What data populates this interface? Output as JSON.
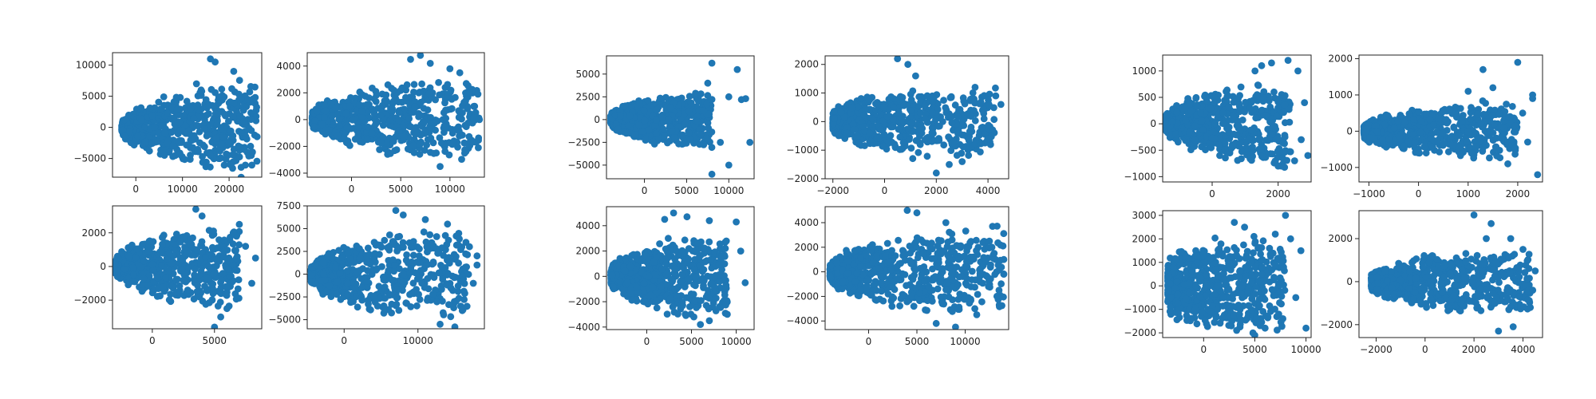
{
  "figure": {
    "marker_color": "#1f77b4"
  },
  "chart_data": [
    {
      "type": "scatter",
      "group": 1,
      "row": 0,
      "col": 0,
      "xlim": [
        -5000,
        27000
      ],
      "ylim": [
        -8000,
        12000
      ],
      "xticks": [
        0,
        10000,
        20000
      ],
      "yticks": [
        -5000,
        0,
        5000,
        10000
      ],
      "cloud": {
        "x_start": -3000,
        "x_core": 10000,
        "x_end": 26000,
        "y_left": 600,
        "y_core": 6000,
        "y_end": 9000
      },
      "outliers": [
        [
          14000,
          6000
        ],
        [
          16000,
          11000
        ],
        [
          17000,
          10500
        ],
        [
          21000,
          9000
        ],
        [
          24000,
          4500
        ],
        [
          19000,
          0
        ],
        [
          20000,
          -2500
        ],
        [
          22000,
          -3000
        ],
        [
          26000,
          -1500
        ],
        [
          18000,
          -5000
        ],
        [
          25000,
          -4000
        ],
        [
          13000,
          7000
        ]
      ]
    },
    {
      "type": "scatter",
      "group": 1,
      "row": 0,
      "col": 1,
      "xlim": [
        -4500,
        13500
      ],
      "ylim": [
        -4300,
        5000
      ],
      "xticks": [
        0,
        5000,
        10000
      ],
      "yticks": [
        -4000,
        -2000,
        0,
        2000,
        4000
      ],
      "cloud": {
        "x_start": -4000,
        "x_core": 4000,
        "x_end": 13000,
        "y_left": 500,
        "y_core": 2800,
        "y_end": 3500
      },
      "outliers": [
        [
          6000,
          4500
        ],
        [
          7000,
          4800
        ],
        [
          8000,
          4200
        ],
        [
          11000,
          3500
        ],
        [
          12500,
          1000
        ],
        [
          11500,
          -2500
        ],
        [
          12000,
          2000
        ],
        [
          9000,
          -3500
        ],
        [
          13000,
          0
        ],
        [
          10000,
          3800
        ]
      ]
    },
    {
      "type": "scatter",
      "group": 1,
      "row": 1,
      "col": 0,
      "xlim": [
        -3200,
        8800
      ],
      "ylim": [
        -3700,
        3600
      ],
      "xticks": [
        0,
        5000
      ],
      "yticks": [
        -2000,
        0,
        2000
      ],
      "cloud": {
        "x_start": -3000,
        "x_core": 2500,
        "x_end": 7000,
        "y_left": 300,
        "y_core": 2400,
        "y_end": 2600
      },
      "outliers": [
        [
          3500,
          3400
        ],
        [
          4000,
          3000
        ],
        [
          6500,
          2000
        ],
        [
          7500,
          1200
        ],
        [
          8300,
          500
        ],
        [
          8000,
          -1000
        ],
        [
          6000,
          -2500
        ],
        [
          5500,
          -3000
        ],
        [
          7000,
          2500
        ],
        [
          5000,
          -3600
        ]
      ]
    },
    {
      "type": "scatter",
      "group": 1,
      "row": 1,
      "col": 1,
      "xlim": [
        -5000,
        19000
      ],
      "ylim": [
        -6000,
        7500
      ],
      "xticks": [
        0,
        10000
      ],
      "yticks": [
        -5000,
        -2500,
        0,
        2500,
        5000,
        7500
      ],
      "cloud": {
        "x_start": -4500,
        "x_core": 6000,
        "x_end": 17000,
        "y_left": 700,
        "y_core": 4800,
        "y_end": 5200
      },
      "outliers": [
        [
          7000,
          7000
        ],
        [
          8000,
          6500
        ],
        [
          11000,
          6000
        ],
        [
          14000,
          5500
        ],
        [
          18000,
          2000
        ],
        [
          17500,
          -1000
        ],
        [
          16000,
          -4000
        ],
        [
          13000,
          -5500
        ],
        [
          15000,
          -5800
        ],
        [
          18000,
          1000
        ]
      ]
    },
    {
      "type": "scatter",
      "group": 2,
      "row": 0,
      "col": 0,
      "xlim": [
        -4500,
        13000
      ],
      "ylim": [
        -6500,
        7000
      ],
      "xticks": [
        0,
        5000,
        10000
      ],
      "yticks": [
        -5000,
        -2500,
        0,
        2500,
        5000
      ],
      "cloud": {
        "x_start": -4000,
        "x_core": 2500,
        "x_end": 8000,
        "y_left": 400,
        "y_core": 3000,
        "y_end": 3400
      },
      "outliers": [
        [
          8000,
          6200
        ],
        [
          11000,
          5500
        ],
        [
          10000,
          2500
        ],
        [
          12000,
          2300
        ],
        [
          9000,
          -2500
        ],
        [
          8000,
          -6000
        ],
        [
          10000,
          -5000
        ],
        [
          12500,
          -2500
        ],
        [
          11500,
          2200
        ],
        [
          7500,
          4000
        ]
      ]
    },
    {
      "type": "scatter",
      "group": 2,
      "row": 0,
      "col": 1,
      "xlim": [
        -2300,
        4800
      ],
      "ylim": [
        -2000,
        2300
      ],
      "xticks": [
        -2000,
        0,
        2000,
        4000
      ],
      "yticks": [
        -2000,
        -1000,
        0,
        1000,
        2000
      ],
      "cloud": {
        "x_start": -2000,
        "x_core": 1000,
        "x_end": 4300,
        "y_left": 300,
        "y_core": 1300,
        "y_end": 1300
      },
      "outliers": [
        [
          500,
          2200
        ],
        [
          900,
          2000
        ],
        [
          1200,
          1600
        ],
        [
          4300,
          900
        ],
        [
          4500,
          600
        ],
        [
          4000,
          -600
        ],
        [
          2500,
          -1500
        ],
        [
          2000,
          -1800
        ],
        [
          3500,
          1200
        ],
        [
          3000,
          -1400
        ]
      ]
    },
    {
      "type": "scatter",
      "group": 2,
      "row": 1,
      "col": 0,
      "xlim": [
        -4500,
        12000
      ],
      "ylim": [
        -4200,
        5500
      ],
      "xticks": [
        0,
        5000,
        10000
      ],
      "yticks": [
        -4000,
        -2000,
        0,
        2000,
        4000
      ],
      "cloud": {
        "x_start": -4000,
        "x_core": 3000,
        "x_end": 9000,
        "y_left": 500,
        "y_core": 3200,
        "y_end": 3600
      },
      "outliers": [
        [
          2000,
          4500
        ],
        [
          3000,
          5000
        ],
        [
          4500,
          4700
        ],
        [
          7000,
          4400
        ],
        [
          10000,
          4300
        ],
        [
          11000,
          -500
        ],
        [
          9000,
          -3000
        ],
        [
          7000,
          -3500
        ],
        [
          10500,
          2000
        ],
        [
          6000,
          -3800
        ]
      ]
    },
    {
      "type": "scatter",
      "group": 2,
      "row": 1,
      "col": 1,
      "xlim": [
        -4500,
        14500
      ],
      "ylim": [
        -4700,
        5300
      ],
      "xticks": [
        0,
        5000,
        10000
      ],
      "yticks": [
        -4000,
        -2000,
        0,
        2000,
        4000
      ],
      "cloud": {
        "x_start": -4000,
        "x_core": 4000,
        "x_end": 14000,
        "y_left": 500,
        "y_core": 3400,
        "y_end": 3800
      },
      "outliers": [
        [
          4000,
          5000
        ],
        [
          5000,
          4800
        ],
        [
          8000,
          4000
        ],
        [
          12500,
          2500
        ],
        [
          13000,
          1500
        ],
        [
          13500,
          -1500
        ],
        [
          11000,
          -3000
        ],
        [
          9000,
          -4500
        ],
        [
          14000,
          1000
        ],
        [
          7000,
          -4200
        ]
      ]
    },
    {
      "type": "scatter",
      "group": 3,
      "row": 0,
      "col": 0,
      "xlim": [
        -1500,
        3000
      ],
      "ylim": [
        -1100,
        1300
      ],
      "xticks": [
        0,
        2000
      ],
      "yticks": [
        -1000,
        -500,
        0,
        500,
        1000
      ],
      "cloud": {
        "x_start": -1400,
        "x_core": 1000,
        "x_end": 2400,
        "y_left": 150,
        "y_core": 800,
        "y_end": 900
      },
      "outliers": [
        [
          1500,
          1100
        ],
        [
          1800,
          1150
        ],
        [
          2300,
          1200
        ],
        [
          2600,
          1000
        ],
        [
          2800,
          400
        ],
        [
          2700,
          -300
        ],
        [
          2500,
          -700
        ],
        [
          2000,
          -800
        ],
        [
          2900,
          -600
        ],
        [
          1300,
          1000
        ]
      ]
    },
    {
      "type": "scatter",
      "group": 3,
      "row": 0,
      "col": 1,
      "xlim": [
        -1200,
        2500
      ],
      "ylim": [
        -1400,
        2100
      ],
      "xticks": [
        -1000,
        0,
        1000,
        2000
      ],
      "yticks": [
        -1000,
        0,
        1000,
        2000
      ],
      "cloud": {
        "x_start": -1100,
        "x_core": 700,
        "x_end": 2000,
        "y_left": 150,
        "y_core": 800,
        "y_end": 900
      },
      "outliers": [
        [
          1000,
          1100
        ],
        [
          1300,
          1700
        ],
        [
          2000,
          1900
        ],
        [
          2300,
          1000
        ],
        [
          2200,
          -300
        ],
        [
          2400,
          -1200
        ],
        [
          1800,
          -900
        ],
        [
          2100,
          500
        ],
        [
          1500,
          1200
        ],
        [
          2300,
          900
        ]
      ]
    },
    {
      "type": "scatter",
      "group": 3,
      "row": 1,
      "col": 0,
      "xlim": [
        -4000,
        10500
      ],
      "ylim": [
        -2200,
        3200
      ],
      "xticks": [
        0,
        5000,
        10000
      ],
      "yticks": [
        -2000,
        -1000,
        0,
        1000,
        2000,
        3000
      ],
      "cloud": {
        "x_start": -3500,
        "x_core": 2500,
        "x_end": 8000,
        "y_left": 1000,
        "y_core": 2400,
        "y_end": 2200
      },
      "outliers": [
        [
          3000,
          2700
        ],
        [
          4000,
          2500
        ],
        [
          8000,
          3000
        ],
        [
          9500,
          1500
        ],
        [
          9000,
          -500
        ],
        [
          10000,
          -1800
        ],
        [
          6000,
          -1800
        ],
        [
          5000,
          -2100
        ],
        [
          8500,
          2000
        ],
        [
          7000,
          2200
        ]
      ]
    },
    {
      "type": "scatter",
      "group": 3,
      "row": 1,
      "col": 1,
      "xlim": [
        -2700,
        4800
      ],
      "ylim": [
        -2600,
        3300
      ],
      "xticks": [
        -2000,
        0,
        2000,
        4000
      ],
      "yticks": [
        -2000,
        0,
        2000
      ],
      "cloud": {
        "x_start": -2200,
        "x_core": 1000,
        "x_end": 4300,
        "y_left": 300,
        "y_core": 1500,
        "y_end": 1600
      },
      "outliers": [
        [
          2000,
          3100
        ],
        [
          2700,
          2700
        ],
        [
          3500,
          2000
        ],
        [
          4500,
          500
        ],
        [
          4300,
          -1200
        ],
        [
          3000,
          -2300
        ],
        [
          3600,
          -2100
        ],
        [
          4000,
          1500
        ],
        [
          2500,
          2000
        ],
        [
          4400,
          -400
        ]
      ]
    }
  ]
}
